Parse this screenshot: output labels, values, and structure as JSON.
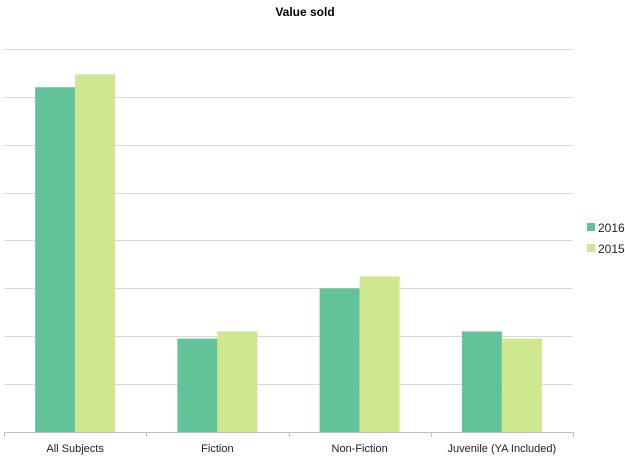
{
  "chart_data": {
    "type": "bar",
    "title": "Value sold",
    "xlabel": "",
    "ylabel": "",
    "categories": [
      "All Subjects",
      "Fiction",
      "Non-Fiction",
      "Juvenile (YA Included)"
    ],
    "series": [
      {
        "name": "2016",
        "color": "#62c39b",
        "values": [
          7.2,
          1.95,
          3.0,
          2.1
        ]
      },
      {
        "name": "2015",
        "color": "#cfe78f",
        "values": [
          7.47,
          2.1,
          3.25,
          1.95
        ]
      }
    ],
    "ylim": [
      0,
      8.5
    ],
    "grid": true,
    "grid_step": 1,
    "legend_position": "right"
  }
}
